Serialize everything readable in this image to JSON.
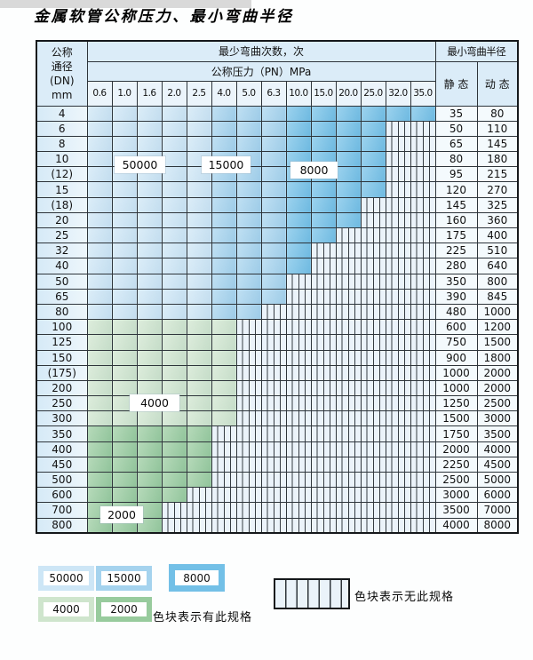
{
  "title": "金属软管公称压力、最小弯曲半径",
  "table": {
    "header": {
      "dn_lines": [
        "公称",
        "通径",
        "(DN)",
        "mm"
      ],
      "cycles_label": "最少弯曲次数，次",
      "radius_label": "最小弯曲半径",
      "pn_label": "公称压力（PN）MPa",
      "static_label": "静 态",
      "dynamic_label": "动 态",
      "pressures": [
        "0.6",
        "1.0",
        "1.6",
        "2.0",
        "2.5",
        "4.0",
        "5.0",
        "6.3",
        "10.0",
        "15.0",
        "20.0",
        "25.0",
        "32.0",
        "35.0"
      ]
    },
    "palette": {
      "c50000": "#cde6f6",
      "c15000": "#a5d3ee",
      "c8000": "#73c0e7",
      "c4000": "#cfe5cd",
      "c2000": "#98cb9d"
    },
    "rows": [
      {
        "dn": "4",
        "through": 13,
        "palette": "blue",
        "static": "35",
        "dynamic": "80"
      },
      {
        "dn": "6",
        "through": 11,
        "palette": "blue",
        "static": "50",
        "dynamic": "110"
      },
      {
        "dn": "8",
        "through": 11,
        "palette": "blue",
        "static": "65",
        "dynamic": "145"
      },
      {
        "dn": "10",
        "through": 11,
        "palette": "blue",
        "static": "80",
        "dynamic": "180"
      },
      {
        "dn": "(12)",
        "through": 11,
        "palette": "blue",
        "static": "95",
        "dynamic": "215"
      },
      {
        "dn": "15",
        "through": 11,
        "palette": "blue",
        "static": "120",
        "dynamic": "270"
      },
      {
        "dn": "(18)",
        "through": 10,
        "palette": "blue",
        "static": "145",
        "dynamic": "325"
      },
      {
        "dn": "20",
        "through": 10,
        "palette": "blue",
        "static": "160",
        "dynamic": "360"
      },
      {
        "dn": "25",
        "through": 9,
        "palette": "blue",
        "static": "175",
        "dynamic": "400"
      },
      {
        "dn": "32",
        "through": 8,
        "palette": "blue",
        "static": "225",
        "dynamic": "510"
      },
      {
        "dn": "40",
        "through": 8,
        "palette": "blue",
        "static": "280",
        "dynamic": "640"
      },
      {
        "dn": "50",
        "through": 7,
        "palette": "blue",
        "static": "350",
        "dynamic": "800"
      },
      {
        "dn": "65",
        "through": 7,
        "palette": "blue",
        "static": "390",
        "dynamic": "845"
      },
      {
        "dn": "80",
        "through": 6,
        "palette": "blue",
        "static": "480",
        "dynamic": "1000"
      },
      {
        "dn": "100",
        "through": 5,
        "palette": "green-light",
        "static": "600",
        "dynamic": "1200"
      },
      {
        "dn": "125",
        "through": 5,
        "palette": "green-light",
        "static": "750",
        "dynamic": "1500"
      },
      {
        "dn": "150",
        "through": 5,
        "palette": "green-light",
        "static": "900",
        "dynamic": "1800"
      },
      {
        "dn": "(175)",
        "through": 5,
        "palette": "green-light",
        "static": "1000",
        "dynamic": "2000"
      },
      {
        "dn": "200",
        "through": 5,
        "palette": "green-light",
        "static": "1000",
        "dynamic": "2000"
      },
      {
        "dn": "250",
        "through": 5,
        "palette": "green-light",
        "static": "1250",
        "dynamic": "2500"
      },
      {
        "dn": "300",
        "through": 5,
        "palette": "green-light",
        "static": "1500",
        "dynamic": "3000"
      },
      {
        "dn": "350",
        "through": 4,
        "palette": "green-med",
        "static": "1750",
        "dynamic": "3500"
      },
      {
        "dn": "400",
        "through": 4,
        "palette": "green-med",
        "static": "2000",
        "dynamic": "4000"
      },
      {
        "dn": "450",
        "through": 4,
        "palette": "green-med",
        "static": "2250",
        "dynamic": "4500"
      },
      {
        "dn": "500",
        "through": 4,
        "palette": "green-med",
        "static": "2500",
        "dynamic": "5000"
      },
      {
        "dn": "600",
        "through": 3,
        "palette": "green-med",
        "static": "3000",
        "dynamic": "6000"
      },
      {
        "dn": "700",
        "through": 2,
        "palette": "green-med",
        "static": "3500",
        "dynamic": "7000"
      },
      {
        "dn": "800",
        "through": 2,
        "palette": "green-med",
        "static": "4000",
        "dynamic": "8000"
      }
    ]
  },
  "overlay_labels": [
    {
      "text": "50000"
    },
    {
      "text": "15000"
    },
    {
      "text": "8000"
    },
    {
      "text": "4000"
    },
    {
      "text": "2000"
    }
  ],
  "legend": {
    "items": [
      {
        "label": "50000"
      },
      {
        "label": "15000"
      },
      {
        "label": "8000"
      },
      {
        "label": "4000"
      },
      {
        "label": "2000"
      }
    ],
    "has_spec_label": "色块表示有此规格",
    "no_spec_label": "色块表示无此规格"
  }
}
